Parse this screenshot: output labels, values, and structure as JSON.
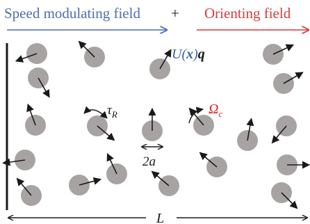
{
  "header": {
    "speed_field_label": "Speed modulating field",
    "plus_sign": "+",
    "orienting_field_label": "Orienting field",
    "speed_arrow_color": "#4a6fb4",
    "orient_arrow_color": "#d93b3b"
  },
  "labels": {
    "velocity_U": "U",
    "velocity_x": "x",
    "velocity_q": "q",
    "tau": "τ",
    "tau_sub": "R",
    "omega": "Ω",
    "omega_sub": "c",
    "diameter": "2a",
    "length": "L"
  },
  "colors": {
    "particle_fill": "#a8a3a3",
    "arrow": "#1a1a1a",
    "omega": "#e02020"
  },
  "icons": {
    "rotation": "curved-double-arrow-icon",
    "width": "horizontal-double-arrow-icon"
  }
}
